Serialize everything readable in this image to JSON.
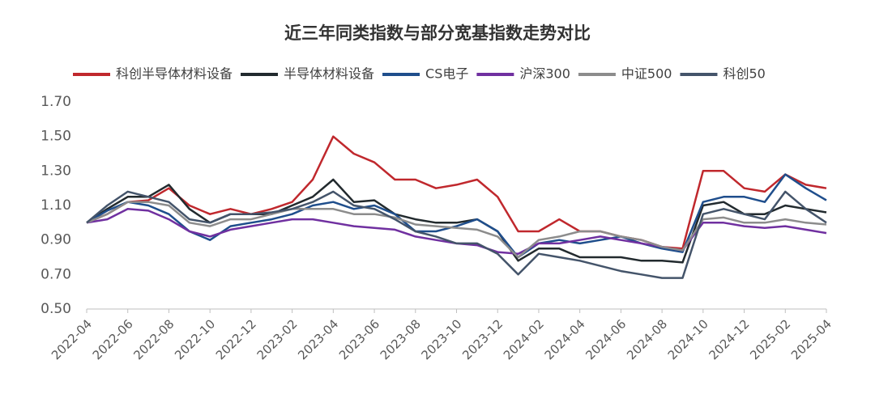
{
  "chart_data": {
    "type": "line",
    "title": "近三年同类指数与部分宽基指数走势对比",
    "x": [
      "2022-04",
      "2022-05",
      "2022-06",
      "2022-07",
      "2022-08",
      "2022-09",
      "2022-10",
      "2022-11",
      "2022-12",
      "2023-01",
      "2023-02",
      "2023-03",
      "2023-04",
      "2023-05",
      "2023-06",
      "2023-07",
      "2023-08",
      "2023-09",
      "2023-10",
      "2023-11",
      "2023-12",
      "2024-01",
      "2024-02",
      "2024-03",
      "2024-04",
      "2024-05",
      "2024-06",
      "2024-07",
      "2024-08",
      "2024-09",
      "2024-10",
      "2024-11",
      "2024-12",
      "2025-01",
      "2025-02",
      "2025-03",
      "2025-04"
    ],
    "series": [
      {
        "name": "科创半导体材料设备",
        "color": "#c0282d",
        "values": [
          1.0,
          1.05,
          1.12,
          1.13,
          1.2,
          1.1,
          1.05,
          1.08,
          1.05,
          1.08,
          1.12,
          1.25,
          1.5,
          1.4,
          1.35,
          1.25,
          1.25,
          1.2,
          1.22,
          1.25,
          1.15,
          0.95,
          0.95,
          1.02,
          0.95,
          0.95,
          0.92,
          0.9,
          0.86,
          0.85,
          1.3,
          1.3,
          1.2,
          1.18,
          1.28,
          1.22,
          1.2
        ]
      },
      {
        "name": "半导体材料设备",
        "color": "#222a2e",
        "values": [
          1.0,
          1.08,
          1.15,
          1.15,
          1.22,
          1.08,
          1.0,
          1.05,
          1.05,
          1.05,
          1.1,
          1.15,
          1.25,
          1.12,
          1.13,
          1.05,
          1.02,
          1.0,
          1.0,
          1.02,
          0.95,
          0.78,
          0.85,
          0.85,
          0.8,
          0.8,
          0.8,
          0.78,
          0.78,
          0.77,
          1.1,
          1.12,
          1.05,
          1.05,
          1.1,
          1.08,
          1.06
        ]
      },
      {
        "name": "CS电子",
        "color": "#1f4e8c",
        "values": [
          1.0,
          1.07,
          1.12,
          1.1,
          1.05,
          0.95,
          0.9,
          0.98,
          1.0,
          1.02,
          1.05,
          1.1,
          1.12,
          1.08,
          1.1,
          1.05,
          0.95,
          0.95,
          0.98,
          1.02,
          0.95,
          0.8,
          0.88,
          0.9,
          0.88,
          0.9,
          0.92,
          0.88,
          0.85,
          0.83,
          1.12,
          1.15,
          1.15,
          1.12,
          1.28,
          1.2,
          1.13
        ]
      },
      {
        "name": "沪深300",
        "color": "#7030a0",
        "values": [
          1.0,
          1.02,
          1.08,
          1.07,
          1.02,
          0.95,
          0.92,
          0.96,
          0.98,
          1.0,
          1.02,
          1.02,
          1.0,
          0.98,
          0.97,
          0.96,
          0.92,
          0.9,
          0.88,
          0.87,
          0.83,
          0.82,
          0.88,
          0.88,
          0.9,
          0.92,
          0.9,
          0.88,
          0.86,
          0.84,
          1.0,
          1.0,
          0.98,
          0.97,
          0.98,
          0.96,
          0.94
        ]
      },
      {
        "name": "中证500",
        "color": "#8c8c8c",
        "values": [
          1.0,
          1.05,
          1.12,
          1.12,
          1.1,
          1.0,
          0.98,
          1.02,
          1.02,
          1.05,
          1.08,
          1.08,
          1.08,
          1.05,
          1.05,
          1.03,
          0.99,
          0.98,
          0.97,
          0.96,
          0.92,
          0.8,
          0.9,
          0.92,
          0.95,
          0.95,
          0.92,
          0.9,
          0.86,
          0.84,
          1.02,
          1.03,
          1.0,
          1.0,
          1.02,
          1.0,
          0.99
        ]
      },
      {
        "name": "科创50",
        "color": "#44546a",
        "values": [
          1.0,
          1.1,
          1.18,
          1.15,
          1.12,
          1.02,
          1.0,
          1.05,
          1.05,
          1.06,
          1.08,
          1.12,
          1.18,
          1.1,
          1.08,
          1.02,
          0.95,
          0.92,
          0.88,
          0.88,
          0.82,
          0.7,
          0.82,
          0.8,
          0.78,
          0.75,
          0.72,
          0.7,
          0.68,
          0.68,
          1.05,
          1.08,
          1.05,
          1.02,
          1.18,
          1.08,
          1.0
        ]
      }
    ],
    "xlim": [
      "2022-04",
      "2025-04"
    ],
    "xticks": [
      "2022-04",
      "2022-06",
      "2022-08",
      "2022-10",
      "2022-12",
      "2023-02",
      "2023-04",
      "2023-06",
      "2023-08",
      "2023-10",
      "2023-12",
      "2024-02",
      "2024-04",
      "2024-06",
      "2024-08",
      "2024-10",
      "2024-12",
      "2025-02",
      "2025-04"
    ],
    "ylim": [
      0.5,
      1.7
    ],
    "yticks": [
      {
        "value": 0.5,
        "label": "0.50"
      },
      {
        "value": 0.7,
        "label": "0.70"
      },
      {
        "value": 0.9,
        "label": "0.90"
      },
      {
        "value": 1.1,
        "label": "1.10"
      },
      {
        "value": 1.3,
        "label": "1.30"
      },
      {
        "value": 1.5,
        "label": "1.50"
      },
      {
        "value": 1.7,
        "label": "1.70"
      }
    ],
    "grid": false,
    "legend": "top"
  }
}
